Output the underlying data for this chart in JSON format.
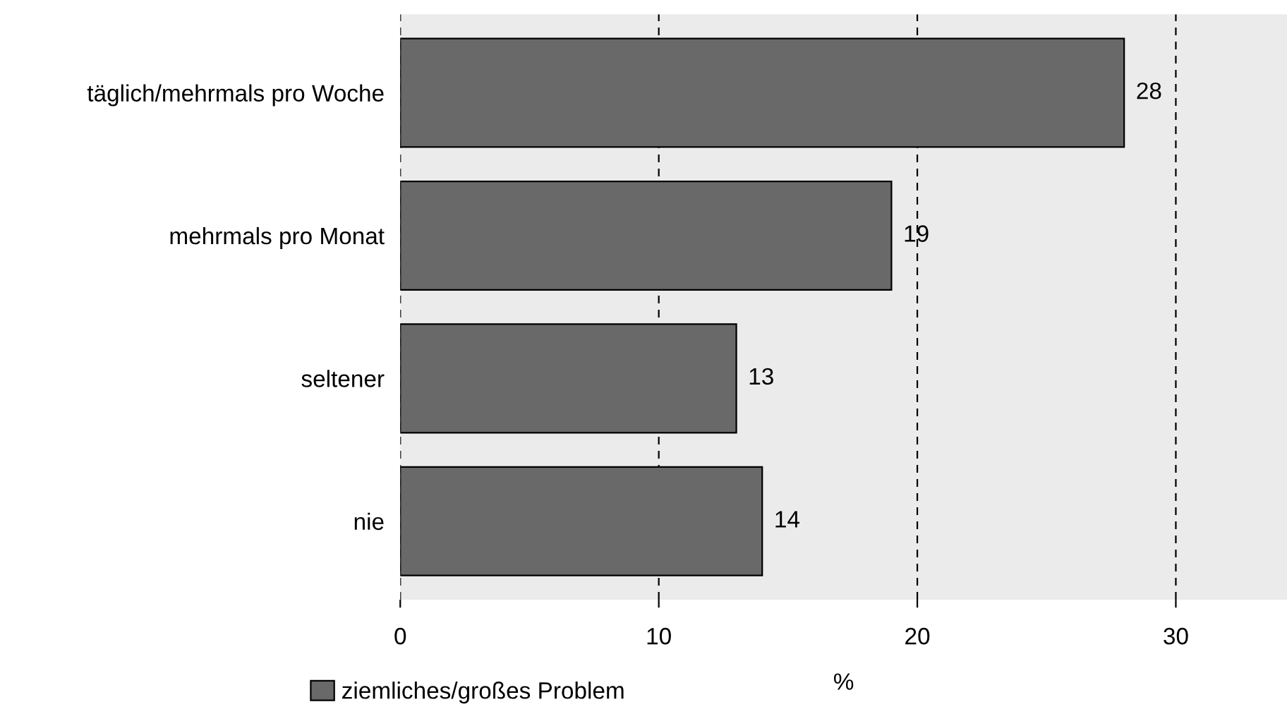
{
  "chart_data": {
    "type": "bar",
    "orientation": "horizontal",
    "categories": [
      "täglich/mehrmals pro Woche",
      "mehrmals pro Monat",
      "seltener",
      "nie"
    ],
    "series": [
      {
        "name": "ziemliches/großes Problem",
        "color": "#696969",
        "values": [
          28,
          19,
          13,
          14
        ]
      }
    ],
    "xlabel": "%",
    "xlim": [
      0,
      34.3
    ],
    "xticks": [
      0,
      10,
      20,
      30
    ],
    "grid": "x",
    "line_style": "dashed",
    "legend": "bottom",
    "data_labels": true
  }
}
